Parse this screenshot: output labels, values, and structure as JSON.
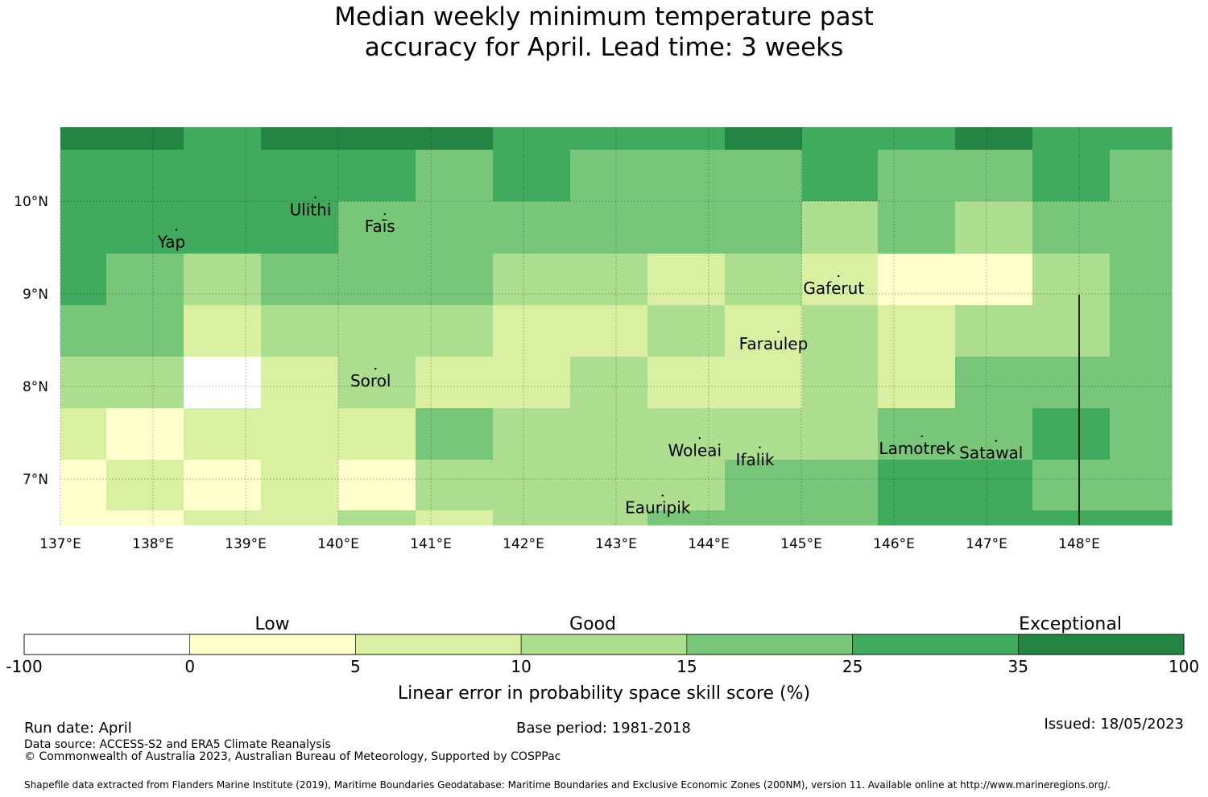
{
  "title_line1": "Median weekly minimum temperature past",
  "title_line2": "accuracy for April. Lead time: 3 weeks",
  "map": {
    "lon_range": [
      137,
      149
    ],
    "lat_range": [
      6.5,
      10.8
    ],
    "lon_ticks": [
      {
        "value": 137,
        "label": "137°E"
      },
      {
        "value": 138,
        "label": "138°E"
      },
      {
        "value": 139,
        "label": "139°E"
      },
      {
        "value": 140,
        "label": "140°E"
      },
      {
        "value": 141,
        "label": "141°E"
      },
      {
        "value": 142,
        "label": "142°E"
      },
      {
        "value": 143,
        "label": "143°E"
      },
      {
        "value": 144,
        "label": "144°E"
      },
      {
        "value": 145,
        "label": "145°E"
      },
      {
        "value": 146,
        "label": "146°E"
      },
      {
        "value": 147,
        "label": "147°E"
      },
      {
        "value": 148,
        "label": "148°E"
      }
    ],
    "lat_ticks": [
      {
        "value": 10,
        "label": "10°N"
      },
      {
        "value": 9,
        "label": "9°N"
      },
      {
        "value": 8,
        "label": "8°N"
      },
      {
        "value": 7,
        "label": "7°N"
      }
    ],
    "islands": [
      {
        "name": "Ulithi",
        "lon": 139.7,
        "lat": 9.85
      },
      {
        "name": "Faīs",
        "lon": 140.45,
        "lat": 9.67
      },
      {
        "name": "Yap",
        "lon": 138.2,
        "lat": 9.5
      },
      {
        "name": "Gaferut",
        "lon": 145.35,
        "lat": 9.0
      },
      {
        "name": "Faraulep",
        "lon": 144.7,
        "lat": 8.4
      },
      {
        "name": "Sorol",
        "lon": 140.35,
        "lat": 8.0
      },
      {
        "name": "Woleai",
        "lon": 143.85,
        "lat": 7.25
      },
      {
        "name": "Ifalik",
        "lon": 144.5,
        "lat": 7.15
      },
      {
        "name": "Lamotrek",
        "lon": 146.25,
        "lat": 7.27
      },
      {
        "name": "Satawal",
        "lon": 147.05,
        "lat": 7.22
      },
      {
        "name": "Eauripik",
        "lon": 143.45,
        "lat": 6.63
      }
    ]
  },
  "legend": {
    "categories": [
      {
        "text": "Low"
      },
      {
        "text": "Good"
      },
      {
        "text": "Exceptional"
      }
    ],
    "colors": [
      "#ffffff",
      "#ffffcc",
      "#d9f0a3",
      "#addd8e",
      "#78c679",
      "#41ab5d",
      "#238443"
    ],
    "bounds": [
      "-100",
      "0",
      "5",
      "10",
      "15",
      "25",
      "35",
      "100"
    ],
    "label": "Linear error in probability space skill score (%)"
  },
  "footer": {
    "run_date": "Run date: April",
    "base_period": "Base period: 1981-2018",
    "issued": "Issued: 18/05/2023",
    "data_source": "Data source: ACCESS-S2 and ERA5 Climate Reanalysis",
    "copyright": "© Commonwealth of Australia 2023, Australian Bureau of Meteorology, Supported by COSPPac",
    "shapefile": "Shapefile data extracted from Flanders Marine Institute (2019), Maritime Boundaries Geodatabase: Maritime Boundaries and Exclusive Economic Zones (200NM), version 11. Available online at http://www.marineregions.org/."
  }
}
